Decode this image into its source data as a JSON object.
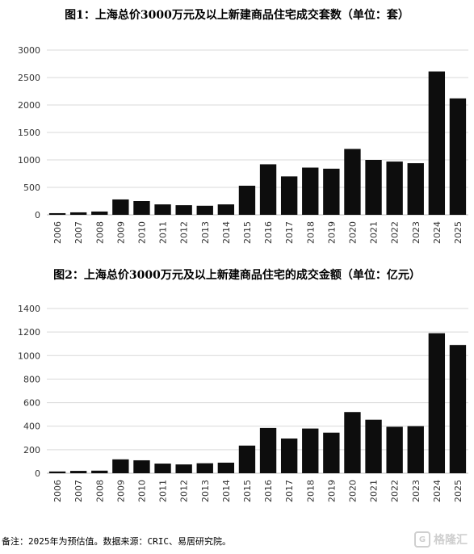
{
  "chart_data": [
    {
      "type": "bar",
      "title": "图1：上海总价3000万元及以上新建商品住宅成交套数（单位：套）",
      "categories": [
        "2006",
        "2007",
        "2008",
        "2009",
        "2010",
        "2011",
        "2012",
        "2013",
        "2014",
        "2015",
        "2016",
        "2017",
        "2018",
        "2019",
        "2020",
        "2021",
        "2022",
        "2023",
        "2024",
        "2025"
      ],
      "values": [
        30,
        45,
        60,
        280,
        250,
        190,
        175,
        165,
        190,
        530,
        920,
        700,
        860,
        840,
        1200,
        1000,
        970,
        940,
        2610,
        2120
      ],
      "ylim": [
        0,
        3000
      ],
      "yticks": [
        0,
        500,
        1000,
        1500,
        2000,
        2500,
        3000
      ],
      "grid": true,
      "bar_color": "#0d0d0d"
    },
    {
      "type": "bar",
      "title": "图2：上海总价3000万元及以上新建商品住宅的成交金额（单位：亿元）",
      "categories": [
        "2006",
        "2007",
        "2008",
        "2009",
        "2010",
        "2011",
        "2012",
        "2013",
        "2014",
        "2015",
        "2016",
        "2017",
        "2018",
        "2019",
        "2020",
        "2021",
        "2022",
        "2023",
        "2024",
        "2025"
      ],
      "values": [
        15,
        20,
        22,
        118,
        110,
        82,
        75,
        85,
        90,
        235,
        385,
        295,
        380,
        345,
        520,
        455,
        395,
        400,
        1190,
        1090
      ],
      "ylim": [
        0,
        1400
      ],
      "yticks": [
        0,
        200,
        400,
        600,
        800,
        1000,
        1200,
        1400
      ],
      "grid": true,
      "bar_color": "#0d0d0d"
    }
  ],
  "footnote": "备注：2025年为预估值。数据来源：CRIC、易居研究院。",
  "watermark": "格隆汇",
  "watermark_logo": "G"
}
